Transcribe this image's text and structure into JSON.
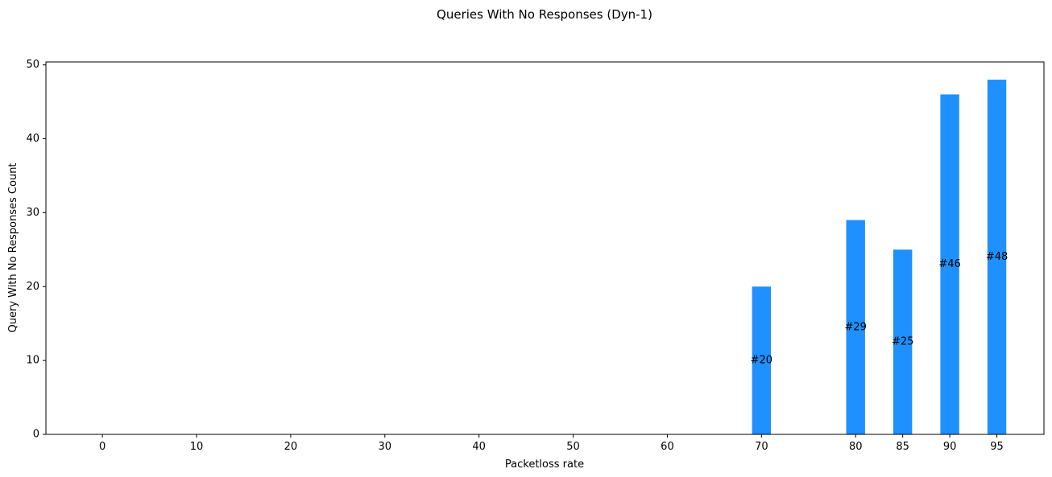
{
  "chart_data": {
    "type": "bar",
    "title": "Queries With No Responses (Dyn-1)",
    "xlabel": "Packetloss rate",
    "ylabel": "Query With No Responses Count",
    "x": [
      0,
      10,
      20,
      30,
      40,
      50,
      60,
      70,
      80,
      85,
      90,
      95
    ],
    "values": [
      0,
      0,
      0,
      0,
      0,
      0,
      0,
      20,
      29,
      25,
      46,
      48
    ],
    "bar_labels": [
      "",
      "",
      "",
      "",
      "",
      "",
      "",
      "#20",
      "#29",
      "#25",
      "#46",
      "#48"
    ],
    "xticks": [
      "0",
      "10",
      "20",
      "30",
      "40",
      "50",
      "60",
      "70",
      "80",
      "85",
      "90",
      "95"
    ],
    "yticks": [
      "0",
      "10",
      "20",
      "30",
      "40",
      "50"
    ],
    "xlim": [
      -6,
      100
    ],
    "ylim": [
      0,
      50.4
    ],
    "bar_color": "#1e90ff",
    "grid": false
  }
}
